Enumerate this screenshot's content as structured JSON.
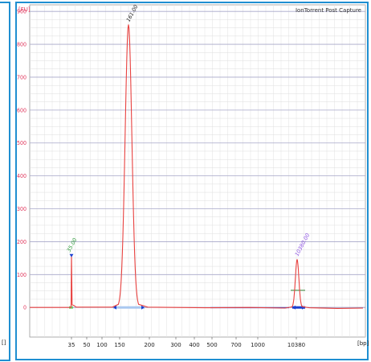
{
  "chart_data": {
    "type": "line",
    "title": "IonTorrent Post Capture",
    "ylabel": "[FU]",
    "xlabel": "[bp]",
    "ylim": [
      -90,
      920
    ],
    "y_ticks": [
      0,
      100,
      200,
      300,
      400,
      500,
      600,
      700,
      800,
      900
    ],
    "x_ticks": [
      "35",
      "50",
      "100",
      "150",
      "200",
      "300",
      "400",
      "500",
      "700",
      "1000",
      "10380"
    ],
    "grid": true,
    "series": [
      {
        "color": "#e8413f",
        "points": [
          [
            "35",
            0
          ],
          [
            "35",
            160
          ],
          [
            "35",
            5
          ],
          [
            "100",
            0
          ],
          [
            "150",
            860
          ],
          [
            "200",
            2
          ],
          [
            "300",
            0
          ],
          [
            "500",
            0
          ],
          [
            "1000",
            -3
          ],
          [
            "10380",
            145
          ],
          [
            "10380+",
            -2
          ]
        ]
      }
    ],
    "peaks": [
      {
        "label": "35.00",
        "x": "35",
        "value": 160,
        "color": "#2e9a3a"
      },
      {
        "label": "161.00",
        "x": "150",
        "value": 860,
        "color": "#222222"
      },
      {
        "label": "10380.00",
        "x": "10380",
        "value": 145,
        "color": "#8a4fe0"
      }
    ]
  }
}
